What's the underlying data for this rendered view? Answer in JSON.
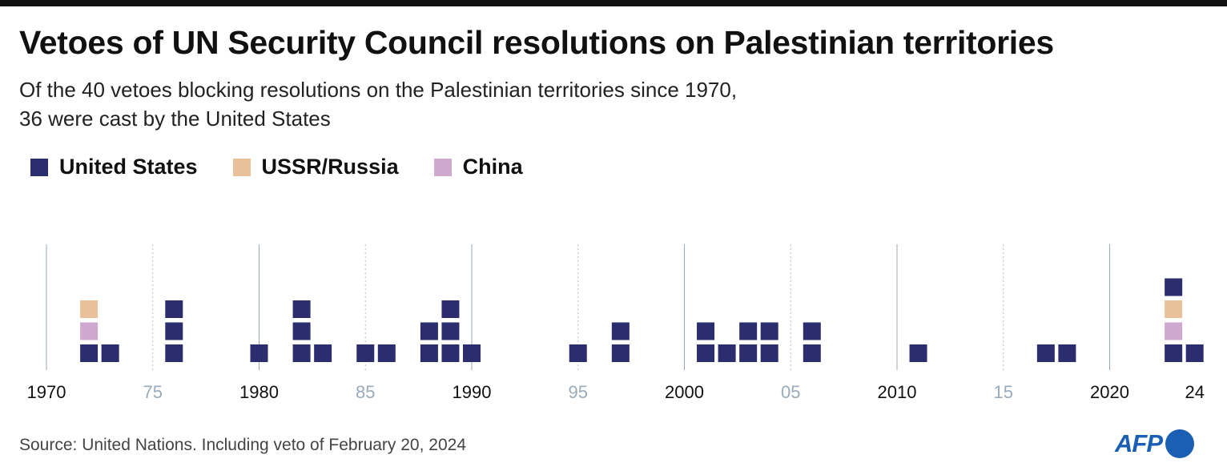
{
  "title": "Vetoes of UN Security Council resolutions on Palestinian territories",
  "subtitle_line1": "Of the 40 vetoes blocking resolutions on the Palestinian territories since 1970,",
  "subtitle_line2": "36 were cast by the United States",
  "source": "Source: United Nations. Including veto of February 20, 2024",
  "logo": "AFP",
  "chart_data": {
    "type": "waffle-timeline",
    "xlim": [
      1970,
      2024
    ],
    "legend_placement": "top-left",
    "series": [
      {
        "name": "United States",
        "color": "#2b2d6e"
      },
      {
        "name": "USSR/Russia",
        "color": "#e8c09a"
      },
      {
        "name": "China",
        "color": "#cfa8d0"
      }
    ],
    "ticks": [
      {
        "year": 1970,
        "label": "1970",
        "major": true
      },
      {
        "year": 1975,
        "label": "75",
        "major": false
      },
      {
        "year": 1980,
        "label": "1980",
        "major": true
      },
      {
        "year": 1985,
        "label": "85",
        "major": false
      },
      {
        "year": 1990,
        "label": "1990",
        "major": true
      },
      {
        "year": 1995,
        "label": "95",
        "major": false
      },
      {
        "year": 2000,
        "label": "2000",
        "major": true
      },
      {
        "year": 2005,
        "label": "05",
        "major": false
      },
      {
        "year": 2010,
        "label": "2010",
        "major": true
      },
      {
        "year": 2015,
        "label": "15",
        "major": false
      },
      {
        "year": 2020,
        "label": "2020",
        "major": true
      },
      {
        "year": 2024,
        "label": "24",
        "major": true,
        "noline": true
      }
    ],
    "vetoes": [
      {
        "year": 1972,
        "stack": [
          "United States",
          "China",
          "USSR/Russia"
        ]
      },
      {
        "year": 1973,
        "stack": [
          "United States"
        ]
      },
      {
        "year": 1976,
        "stack": [
          "United States",
          "United States",
          "United States"
        ]
      },
      {
        "year": 1980,
        "stack": [
          "United States"
        ]
      },
      {
        "year": 1982,
        "stack": [
          "United States",
          "United States",
          "United States"
        ]
      },
      {
        "year": 1983,
        "stack": [
          "United States"
        ]
      },
      {
        "year": 1985,
        "stack": [
          "United States"
        ]
      },
      {
        "year": 1986,
        "stack": [
          "United States"
        ]
      },
      {
        "year": 1988,
        "stack": [
          "United States",
          "United States"
        ]
      },
      {
        "year": 1989,
        "stack": [
          "United States",
          "United States",
          "United States"
        ]
      },
      {
        "year": 1990,
        "stack": [
          "United States"
        ]
      },
      {
        "year": 1995,
        "stack": [
          "United States"
        ]
      },
      {
        "year": 1997,
        "stack": [
          "United States",
          "United States"
        ]
      },
      {
        "year": 2001,
        "stack": [
          "United States",
          "United States"
        ]
      },
      {
        "year": 2002,
        "stack": [
          "United States"
        ]
      },
      {
        "year": 2003,
        "stack": [
          "United States",
          "United States"
        ]
      },
      {
        "year": 2004,
        "stack": [
          "United States",
          "United States"
        ]
      },
      {
        "year": 2006,
        "stack": [
          "United States",
          "United States"
        ]
      },
      {
        "year": 2011,
        "stack": [
          "United States"
        ]
      },
      {
        "year": 2017,
        "stack": [
          "United States"
        ]
      },
      {
        "year": 2018,
        "stack": [
          "United States"
        ]
      },
      {
        "year": 2023,
        "stack": [
          "United States",
          "China",
          "USSR/Russia",
          "United States"
        ]
      },
      {
        "year": 2024,
        "stack": [
          "United States"
        ]
      }
    ]
  }
}
